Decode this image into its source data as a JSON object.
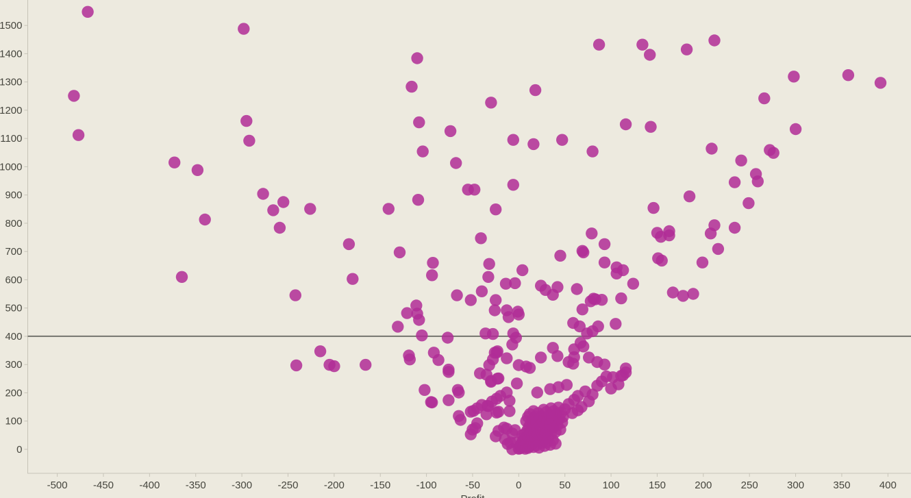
{
  "chart_data": {
    "type": "scatter",
    "title": "",
    "xlabel": "Profit",
    "ylabel": "",
    "legend": "none",
    "grid": "off",
    "x_axis": {
      "min": -532,
      "max": 425,
      "ticks": [
        -500,
        -450,
        -400,
        -350,
        -300,
        -250,
        -200,
        -150,
        -100,
        -50,
        0,
        50,
        100,
        150,
        200,
        250,
        300,
        350,
        400
      ]
    },
    "y_axis": {
      "min": -85,
      "max": 1590,
      "ticks": [
        0,
        100,
        200,
        300,
        400,
        500,
        600,
        700,
        800,
        900,
        1000,
        1100,
        1200,
        1300,
        1400,
        1500
      ]
    },
    "reference_line": {
      "axis": "y",
      "value": 400
    },
    "marker": {
      "shape": "circle",
      "radius_px": 8.7,
      "opacity": 0.85
    },
    "colors": {
      "background": "#EDEADF",
      "point": "#B02D96",
      "reference_line": "#75756E",
      "axis_line": "#C7C4B8",
      "tick_text": "#46463E"
    },
    "points": [
      [
        -482,
        1251
      ],
      [
        -477,
        1112
      ],
      [
        -467,
        1548
      ],
      [
        -373,
        1015
      ],
      [
        -365,
        610
      ],
      [
        -348,
        988
      ],
      [
        -340,
        813
      ],
      [
        -298,
        1488
      ],
      [
        -295,
        1162
      ],
      [
        -292,
        1092
      ],
      [
        -277,
        904
      ],
      [
        -266,
        846
      ],
      [
        -259,
        784
      ],
      [
        -255,
        875
      ],
      [
        -242,
        545
      ],
      [
        -241,
        297
      ],
      [
        -226,
        851
      ],
      [
        -215,
        347
      ],
      [
        -205,
        299
      ],
      [
        -200,
        294
      ],
      [
        -184,
        726
      ],
      [
        -180,
        603
      ],
      [
        -166,
        299
      ],
      [
        -141,
        851
      ],
      [
        -131,
        434
      ],
      [
        -129,
        697
      ],
      [
        -121,
        482
      ],
      [
        -119,
        332
      ],
      [
        -118,
        318
      ],
      [
        -116,
        1283
      ],
      [
        -111,
        509
      ],
      [
        -110,
        1384
      ],
      [
        -110,
        480
      ],
      [
        -109,
        883
      ],
      [
        -108,
        1157
      ],
      [
        -108,
        458
      ],
      [
        -105,
        403
      ],
      [
        -104,
        1054
      ],
      [
        -102,
        210
      ],
      [
        -95,
        167
      ],
      [
        -94,
        616
      ],
      [
        -94,
        166
      ],
      [
        -93,
        660
      ],
      [
        -92,
        342
      ],
      [
        -87,
        316
      ],
      [
        -77,
        395
      ],
      [
        -76,
        282
      ],
      [
        -76,
        274
      ],
      [
        -76,
        174
      ],
      [
        -74,
        1126
      ],
      [
        -68,
        1013
      ],
      [
        -67,
        545
      ],
      [
        -66,
        210
      ],
      [
        -65,
        201
      ],
      [
        -65,
        118
      ],
      [
        -63,
        104
      ],
      [
        -55,
        919
      ],
      [
        -52,
        528
      ],
      [
        -52,
        133
      ],
      [
        -52,
        53
      ],
      [
        -50,
        70
      ],
      [
        -49,
        136
      ],
      [
        -48,
        919
      ],
      [
        -47,
        75
      ],
      [
        -45,
        145
      ],
      [
        -45,
        92
      ],
      [
        -42,
        269
      ],
      [
        -41,
        747
      ],
      [
        -40,
        559
      ],
      [
        -40,
        157
      ],
      [
        -36,
        410
      ],
      [
        -35,
        264
      ],
      [
        -35,
        124
      ],
      [
        -34,
        154
      ],
      [
        -33,
        610
      ],
      [
        -33,
        153
      ],
      [
        -32,
        656
      ],
      [
        -32,
        298
      ],
      [
        -30,
        1227
      ],
      [
        -30,
        242
      ],
      [
        -30,
        239
      ],
      [
        -29,
        169
      ],
      [
        -28,
        408
      ],
      [
        -28,
        318
      ],
      [
        -26,
        492
      ],
      [
        -26,
        342
      ],
      [
        -25,
        849
      ],
      [
        -25,
        528
      ],
      [
        -25,
        46
      ],
      [
        -24,
        342
      ],
      [
        -24,
        179
      ],
      [
        -24,
        130
      ],
      [
        -23,
        347
      ],
      [
        -23,
        250
      ],
      [
        -22,
        251
      ],
      [
        -22,
        133
      ],
      [
        -22,
        65
      ],
      [
        -20,
        189
      ],
      [
        -16,
        77
      ],
      [
        -15,
        36
      ],
      [
        -14,
        586
      ],
      [
        -13,
        492
      ],
      [
        -13,
        322
      ],
      [
        -13,
        201
      ],
      [
        -13,
        73
      ],
      [
        -12,
        19
      ],
      [
        -11,
        468
      ],
      [
        -10,
        172
      ],
      [
        -10,
        135
      ],
      [
        -9,
        24
      ],
      [
        -7,
        371
      ],
      [
        -7,
        56
      ],
      [
        -7,
        0
      ],
      [
        -6,
        1095
      ],
      [
        -6,
        936
      ],
      [
        -6,
        410
      ],
      [
        -4,
        588
      ],
      [
        -4,
        68
      ],
      [
        -3,
        395
      ],
      [
        -3,
        24
      ],
      [
        -2,
        233
      ],
      [
        -1,
        487
      ],
      [
        0,
        477
      ],
      [
        0,
        298
      ],
      [
        0,
        2
      ],
      [
        2,
        10
      ],
      [
        4,
        634
      ],
      [
        8,
        293
      ],
      [
        11,
        10
      ],
      [
        12,
        288
      ],
      [
        16,
        1080
      ],
      [
        18,
        1271
      ],
      [
        20,
        201
      ],
      [
        22,
        34
      ],
      [
        24,
        579
      ],
      [
        24,
        325
      ],
      [
        29,
        564
      ],
      [
        34,
        213
      ],
      [
        34,
        73
      ],
      [
        37,
        547
      ],
      [
        37,
        359
      ],
      [
        42,
        574
      ],
      [
        42,
        330
      ],
      [
        42,
        104
      ],
      [
        43,
        220
      ],
      [
        45,
        685
      ],
      [
        47,
        1095
      ],
      [
        52,
        228
      ],
      [
        54,
        309
      ],
      [
        59,
        447
      ],
      [
        59,
        303
      ],
      [
        60,
        354
      ],
      [
        60,
        326
      ],
      [
        63,
        567
      ],
      [
        64,
        189
      ],
      [
        64,
        138
      ],
      [
        66,
        435
      ],
      [
        67,
        377
      ],
      [
        69,
        702
      ],
      [
        69,
        495
      ],
      [
        70,
        697
      ],
      [
        70,
        364
      ],
      [
        72,
        205
      ],
      [
        74,
        410
      ],
      [
        76,
        325
      ],
      [
        78,
        524
      ],
      [
        79,
        764
      ],
      [
        80,
        1054
      ],
      [
        80,
        418
      ],
      [
        80,
        194
      ],
      [
        81,
        533
      ],
      [
        83,
        531
      ],
      [
        85,
        309
      ],
      [
        85,
        225
      ],
      [
        86,
        435
      ],
      [
        87,
        1432
      ],
      [
        90,
        529
      ],
      [
        93,
        726
      ],
      [
        93,
        661
      ],
      [
        93,
        300
      ],
      [
        95,
        258
      ],
      [
        100,
        215
      ],
      [
        102,
        255
      ],
      [
        105,
        444
      ],
      [
        106,
        644
      ],
      [
        106,
        622
      ],
      [
        108,
        230
      ],
      [
        111,
        534
      ],
      [
        111,
        260
      ],
      [
        113,
        634
      ],
      [
        113,
        262
      ],
      [
        116,
        1150
      ],
      [
        116,
        286
      ],
      [
        116,
        272
      ],
      [
        124,
        586
      ],
      [
        134,
        1432
      ],
      [
        142,
        1396
      ],
      [
        143,
        1141
      ],
      [
        146,
        854
      ],
      [
        150,
        766
      ],
      [
        151,
        676
      ],
      [
        154,
        752
      ],
      [
        155,
        668
      ],
      [
        163,
        757
      ],
      [
        163,
        772
      ],
      [
        167,
        555
      ],
      [
        178,
        543
      ],
      [
        182,
        1415
      ],
      [
        185,
        895
      ],
      [
        189,
        550
      ],
      [
        199,
        661
      ],
      [
        208,
        764
      ],
      [
        209,
        1064
      ],
      [
        212,
        1447
      ],
      [
        212,
        793
      ],
      [
        216,
        709
      ],
      [
        234,
        945
      ],
      [
        234,
        784
      ],
      [
        241,
        1022
      ],
      [
        249,
        871
      ],
      [
        257,
        974
      ],
      [
        259,
        948
      ],
      [
        266,
        1242
      ],
      [
        272,
        1059
      ],
      [
        276,
        1049
      ],
      [
        298,
        1319
      ],
      [
        300,
        1133
      ],
      [
        357,
        1324
      ],
      [
        392,
        1297
      ],
      [
        1,
        3
      ],
      [
        2,
        14
      ],
      [
        3,
        6
      ],
      [
        3,
        20
      ],
      [
        4,
        26
      ],
      [
        4,
        50
      ],
      [
        5,
        10
      ],
      [
        5,
        40
      ],
      [
        6,
        18
      ],
      [
        6,
        35
      ],
      [
        7,
        2
      ],
      [
        7,
        55
      ],
      [
        8,
        8
      ],
      [
        8,
        30
      ],
      [
        8,
        100
      ],
      [
        9,
        22
      ],
      [
        9,
        66
      ],
      [
        10,
        5
      ],
      [
        10,
        44
      ],
      [
        10,
        115
      ],
      [
        11,
        28
      ],
      [
        11,
        80
      ],
      [
        12,
        12
      ],
      [
        12,
        58
      ],
      [
        12,
        125
      ],
      [
        13,
        36
      ],
      [
        13,
        92
      ],
      [
        14,
        18
      ],
      [
        14,
        70
      ],
      [
        15,
        48
      ],
      [
        15,
        104
      ],
      [
        16,
        8
      ],
      [
        16,
        84
      ],
      [
        16,
        135
      ],
      [
        17,
        25
      ],
      [
        17,
        60
      ],
      [
        18,
        38
      ],
      [
        18,
        116
      ],
      [
        19,
        14
      ],
      [
        19,
        95
      ],
      [
        20,
        50
      ],
      [
        20,
        72
      ],
      [
        21,
        30
      ],
      [
        21,
        128
      ],
      [
        22,
        6
      ],
      [
        22,
        106
      ],
      [
        23,
        44
      ],
      [
        23,
        85
      ],
      [
        24,
        64
      ],
      [
        25,
        22
      ],
      [
        25,
        118
      ],
      [
        26,
        52
      ],
      [
        26,
        96
      ],
      [
        27,
        34
      ],
      [
        27,
        140
      ],
      [
        28,
        12
      ],
      [
        28,
        110
      ],
      [
        29,
        56
      ],
      [
        29,
        78
      ],
      [
        30,
        24
      ],
      [
        30,
        132
      ],
      [
        31,
        100
      ],
      [
        32,
        42
      ],
      [
        32,
        68
      ],
      [
        33,
        122
      ],
      [
        34,
        16
      ],
      [
        34,
        88
      ],
      [
        35,
        54
      ],
      [
        35,
        145
      ],
      [
        36,
        112
      ],
      [
        37,
        32
      ],
      [
        37,
        76
      ],
      [
        38,
        135
      ],
      [
        39,
        98
      ],
      [
        40,
        20
      ],
      [
        40,
        62
      ],
      [
        41,
        124
      ],
      [
        42,
        85
      ],
      [
        43,
        148
      ],
      [
        44,
        108
      ],
      [
        45,
        70
      ],
      [
        46,
        130
      ],
      [
        47,
        95
      ],
      [
        48,
        115
      ],
      [
        50,
        142
      ],
      [
        54,
        160
      ],
      [
        58,
        128
      ],
      [
        60,
        175
      ],
      [
        68,
        150
      ],
      [
        76,
        170
      ],
      [
        90,
        240
      ]
    ]
  }
}
